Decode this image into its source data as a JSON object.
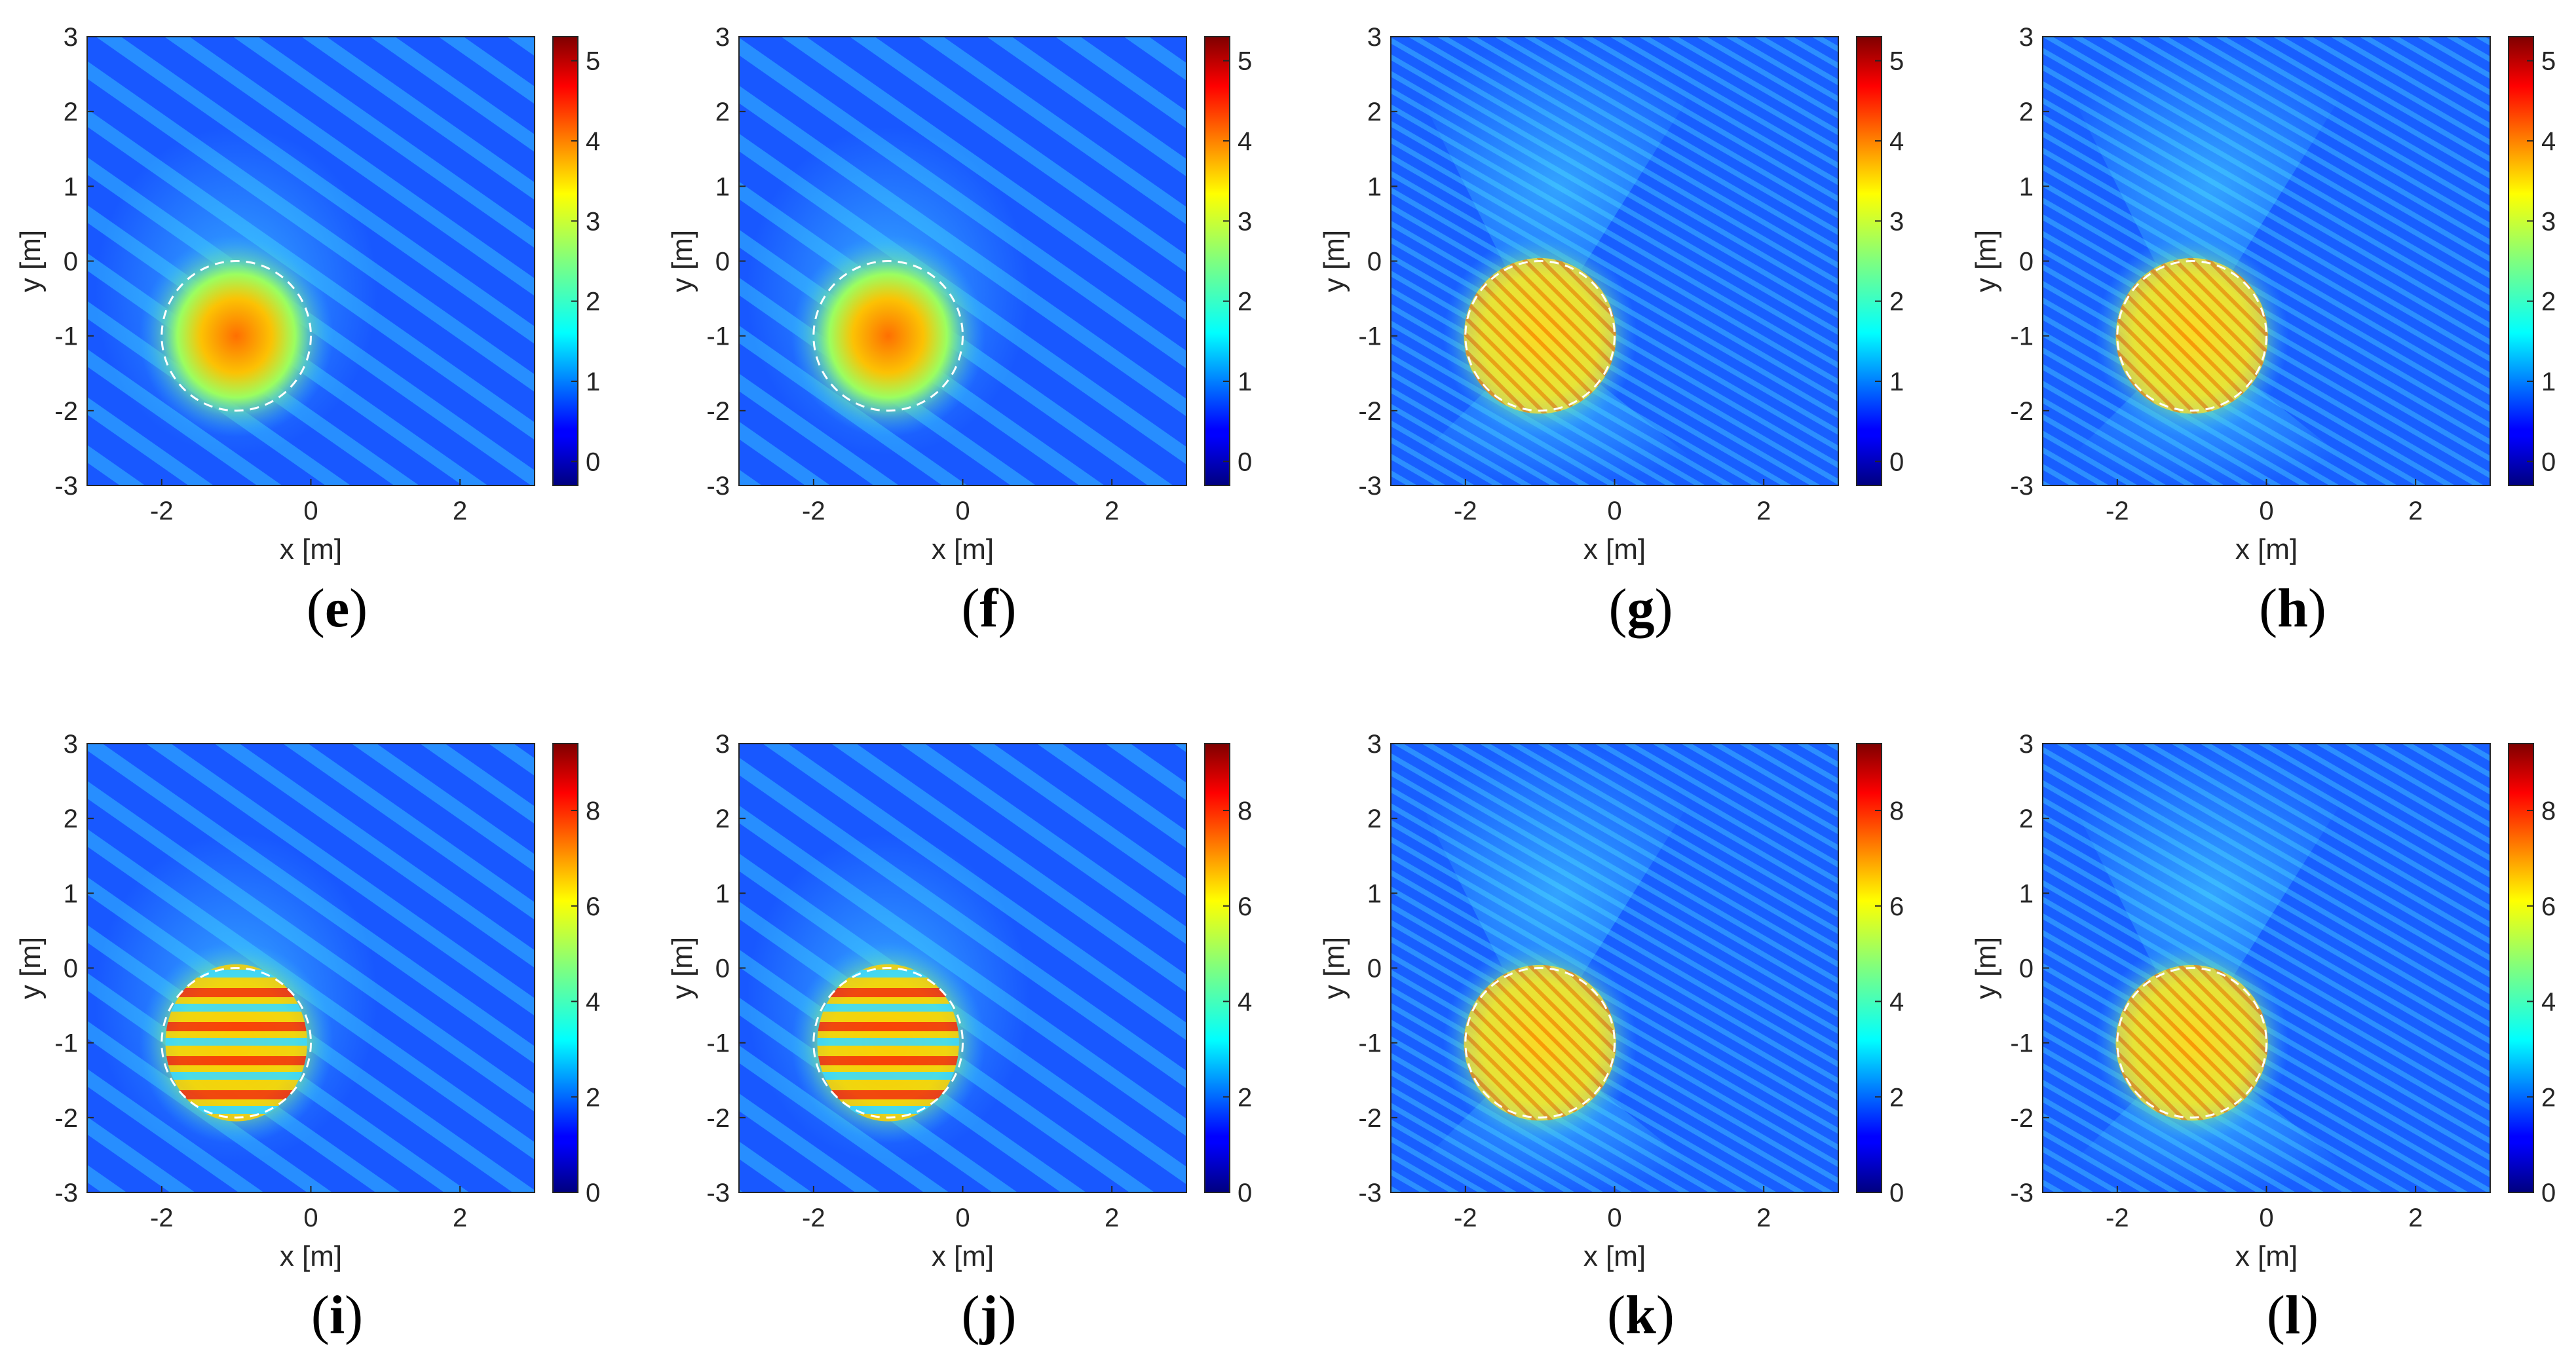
{
  "figure": {
    "rows": [
      {
        "colorbar_ticks": [
          "0",
          "1",
          "2",
          "3",
          "4",
          "5"
        ],
        "colorbar_max": 5.3
      },
      {
        "colorbar_ticks": [
          "0",
          "2",
          "4",
          "6",
          "8"
        ],
        "colorbar_max": 9.4
      }
    ]
  },
  "chart_data": [
    {
      "panel": "e",
      "type": "heatmap",
      "xlabel": "x [m]",
      "ylabel": "y [m]",
      "xlim": [
        -3,
        3
      ],
      "ylim": [
        -3,
        3
      ],
      "xticks": [
        -2,
        0,
        2
      ],
      "yticks": [
        -3,
        -2,
        -1,
        0,
        1,
        2,
        3
      ],
      "clim": [
        -0.3,
        5.3
      ],
      "colorbar_ticks": [
        0,
        1,
        2,
        3,
        4,
        5
      ],
      "colormap": "jet",
      "scatterer": {
        "shape": "circle",
        "center": [
          -1,
          -1
        ],
        "radius": 1
      }
    },
    {
      "panel": "f",
      "type": "heatmap",
      "xlabel": "x [m]",
      "ylabel": "y [m]",
      "xlim": [
        -3,
        3
      ],
      "ylim": [
        -3,
        3
      ],
      "xticks": [
        -2,
        0,
        2
      ],
      "yticks": [
        -3,
        -2,
        -1,
        0,
        1,
        2,
        3
      ],
      "clim": [
        -0.3,
        5.3
      ],
      "colorbar_ticks": [
        0,
        1,
        2,
        3,
        4,
        5
      ],
      "colormap": "jet",
      "scatterer": {
        "shape": "circle",
        "center": [
          -1,
          -1
        ],
        "radius": 1
      }
    },
    {
      "panel": "g",
      "type": "heatmap",
      "xlabel": "x [m]",
      "ylabel": "y [m]",
      "xlim": [
        -3,
        3
      ],
      "ylim": [
        -3,
        3
      ],
      "xticks": [
        -2,
        0,
        2
      ],
      "yticks": [
        -3,
        -2,
        -1,
        0,
        1,
        2,
        3
      ],
      "clim": [
        -0.3,
        5.3
      ],
      "colorbar_ticks": [
        0,
        1,
        2,
        3,
        4,
        5
      ],
      "colormap": "jet",
      "scatterer": {
        "shape": "circle",
        "center": [
          -1,
          -1
        ],
        "radius": 1
      }
    },
    {
      "panel": "h",
      "type": "heatmap",
      "xlabel": "x [m]",
      "ylabel": "y [m]",
      "xlim": [
        -3,
        3
      ],
      "ylim": [
        -3,
        3
      ],
      "xticks": [
        -2,
        0,
        2
      ],
      "yticks": [
        -3,
        -2,
        -1,
        0,
        1,
        2,
        3
      ],
      "clim": [
        -0.3,
        5.3
      ],
      "colorbar_ticks": [
        0,
        1,
        2,
        3,
        4,
        5
      ],
      "colormap": "jet",
      "scatterer": {
        "shape": "circle",
        "center": [
          -1,
          -1
        ],
        "radius": 1
      }
    },
    {
      "panel": "i",
      "type": "heatmap",
      "xlabel": "x [m]",
      "ylabel": "y [m]",
      "xlim": [
        -3,
        3
      ],
      "ylim": [
        -3,
        3
      ],
      "xticks": [
        -2,
        0,
        2
      ],
      "yticks": [
        -3,
        -2,
        -1,
        0,
        1,
        2,
        3
      ],
      "clim": [
        0,
        9.4
      ],
      "colorbar_ticks": [
        0,
        2,
        4,
        6,
        8
      ],
      "colormap": "jet",
      "scatterer": {
        "shape": "circle",
        "center": [
          -1,
          -1
        ],
        "radius": 1
      }
    },
    {
      "panel": "j",
      "type": "heatmap",
      "xlabel": "x [m]",
      "ylabel": "y [m]",
      "xlim": [
        -3,
        3
      ],
      "ylim": [
        -3,
        3
      ],
      "xticks": [
        -2,
        0,
        2
      ],
      "yticks": [
        -3,
        -2,
        -1,
        0,
        1,
        2,
        3
      ],
      "clim": [
        0,
        9.4
      ],
      "colorbar_ticks": [
        0,
        2,
        4,
        6,
        8
      ],
      "colormap": "jet",
      "scatterer": {
        "shape": "circle",
        "center": [
          -1,
          -1
        ],
        "radius": 1
      }
    },
    {
      "panel": "k",
      "type": "heatmap",
      "xlabel": "x [m]",
      "ylabel": "y [m]",
      "xlim": [
        -3,
        3
      ],
      "ylim": [
        -3,
        3
      ],
      "xticks": [
        -2,
        0,
        2
      ],
      "yticks": [
        -3,
        -2,
        -1,
        0,
        1,
        2,
        3
      ],
      "clim": [
        0,
        9.4
      ],
      "colorbar_ticks": [
        0,
        2,
        4,
        6,
        8
      ],
      "colormap": "jet",
      "scatterer": {
        "shape": "circle",
        "center": [
          -1,
          -1
        ],
        "radius": 1
      }
    },
    {
      "panel": "l",
      "type": "heatmap",
      "xlabel": "x [m]",
      "ylabel": "y [m]",
      "xlim": [
        -3,
        3
      ],
      "ylim": [
        -3,
        3
      ],
      "xticks": [
        -2,
        0,
        2
      ],
      "yticks": [
        -3,
        -2,
        -1,
        0,
        1,
        2,
        3
      ],
      "clim": [
        0,
        9.4
      ],
      "colorbar_ticks": [
        0,
        2,
        4,
        6,
        8
      ],
      "colormap": "jet",
      "scatterer": {
        "shape": "circle",
        "center": [
          -1,
          -1
        ],
        "radius": 1
      }
    }
  ]
}
